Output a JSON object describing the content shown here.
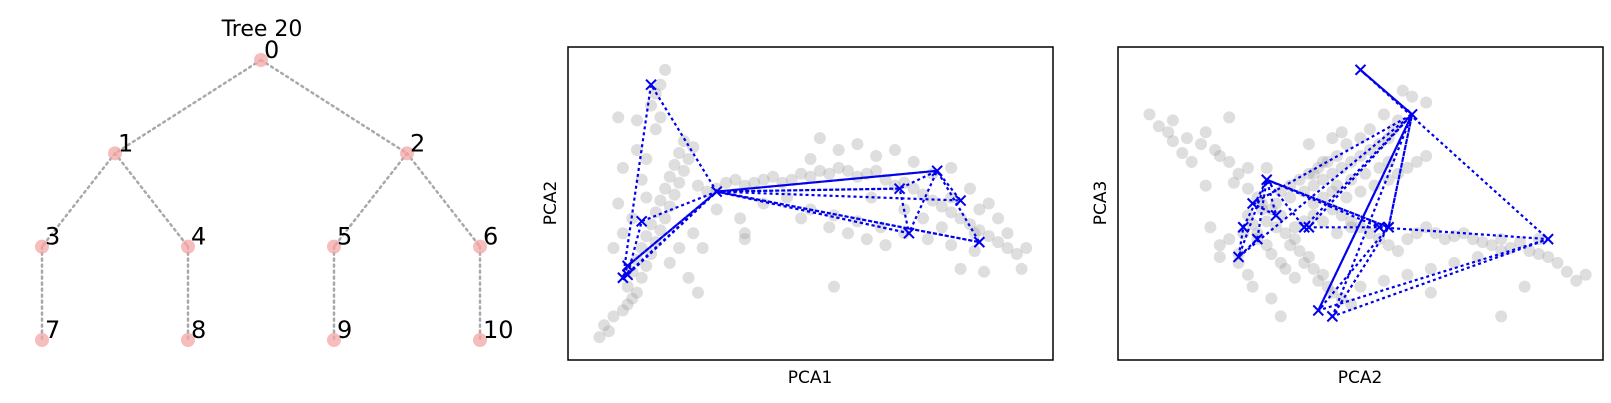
{
  "chart_data": [
    {
      "type": "tree",
      "title": "Tree 20",
      "nodes": [
        {
          "id": 0,
          "label": "0",
          "parent": null
        },
        {
          "id": 1,
          "label": "1",
          "parent": 0
        },
        {
          "id": 2,
          "label": "2",
          "parent": 0
        },
        {
          "id": 3,
          "label": "3",
          "parent": 1
        },
        {
          "id": 4,
          "label": "4",
          "parent": 1
        },
        {
          "id": 5,
          "label": "5",
          "parent": 2
        },
        {
          "id": 6,
          "label": "6",
          "parent": 2
        },
        {
          "id": 7,
          "label": "7",
          "parent": 3
        },
        {
          "id": 8,
          "label": "8",
          "parent": 4
        },
        {
          "id": 9,
          "label": "9",
          "parent": 5
        },
        {
          "id": 10,
          "label": "10",
          "parent": 6
        }
      ],
      "node_color": "#f4a6a6",
      "edge_color": "#a9a9a9"
    },
    {
      "type": "scatter",
      "xlabel": "PCA1",
      "ylabel": "PCA2",
      "xlim": [
        0,
        100
      ],
      "ylim": [
        0,
        100
      ],
      "point_color": "#a0a0a0",
      "path_color": "#0000ee",
      "points": [
        [
          5,
          5
        ],
        [
          7,
          7
        ],
        [
          6,
          9
        ],
        [
          8,
          12
        ],
        [
          10,
          14
        ],
        [
          11,
          16
        ],
        [
          12,
          18
        ],
        [
          13,
          20
        ],
        [
          11,
          22
        ],
        [
          14,
          25
        ],
        [
          12,
          27
        ],
        [
          15,
          29
        ],
        [
          13,
          31
        ],
        [
          16,
          33
        ],
        [
          14,
          35
        ],
        [
          17,
          37
        ],
        [
          15,
          39
        ],
        [
          18,
          41
        ],
        [
          16,
          43
        ],
        [
          19,
          45
        ],
        [
          17,
          47
        ],
        [
          20,
          49
        ],
        [
          18,
          51
        ],
        [
          21,
          53
        ],
        [
          19,
          55
        ],
        [
          22,
          57
        ],
        [
          20,
          59
        ],
        [
          23,
          61
        ],
        [
          21,
          63
        ],
        [
          24,
          65
        ],
        [
          22,
          67
        ],
        [
          25,
          69
        ],
        [
          23,
          71
        ],
        [
          17,
          75
        ],
        [
          18,
          79
        ],
        [
          16,
          83
        ],
        [
          17,
          87
        ],
        [
          18,
          90
        ],
        [
          19,
          95
        ],
        [
          10,
          40
        ],
        [
          9,
          50
        ],
        [
          8,
          35
        ],
        [
          12,
          45
        ],
        [
          14,
          58
        ],
        [
          10,
          62
        ],
        [
          13,
          68
        ],
        [
          15,
          52
        ],
        [
          26,
          56
        ],
        [
          28,
          54
        ],
        [
          30,
          55
        ],
        [
          32,
          57
        ],
        [
          34,
          58
        ],
        [
          36,
          56
        ],
        [
          38,
          57
        ],
        [
          40,
          58
        ],
        [
          42,
          59
        ],
        [
          44,
          57
        ],
        [
          46,
          58
        ],
        [
          48,
          60
        ],
        [
          50,
          59
        ],
        [
          52,
          61
        ],
        [
          54,
          60
        ],
        [
          56,
          62
        ],
        [
          58,
          61
        ],
        [
          60,
          59
        ],
        [
          62,
          60
        ],
        [
          64,
          61
        ],
        [
          66,
          58
        ],
        [
          68,
          56
        ],
        [
          70,
          57
        ],
        [
          72,
          55
        ],
        [
          74,
          53
        ],
        [
          76,
          51
        ],
        [
          78,
          49
        ],
        [
          80,
          47
        ],
        [
          82,
          45
        ],
        [
          84,
          43
        ],
        [
          86,
          41
        ],
        [
          88,
          39
        ],
        [
          90,
          37
        ],
        [
          92,
          35
        ],
        [
          94,
          33
        ],
        [
          50,
          48
        ],
        [
          55,
          46
        ],
        [
          60,
          44
        ],
        [
          65,
          42
        ],
        [
          70,
          40
        ],
        [
          75,
          38
        ],
        [
          80,
          36
        ],
        [
          85,
          34
        ],
        [
          50,
          65
        ],
        [
          52,
          72
        ],
        [
          56,
          68
        ],
        [
          60,
          70
        ],
        [
          64,
          66
        ],
        [
          68,
          68
        ],
        [
          72,
          64
        ],
        [
          76,
          60
        ],
        [
          80,
          62
        ],
        [
          84,
          55
        ],
        [
          88,
          50
        ],
        [
          40,
          50
        ],
        [
          45,
          52
        ],
        [
          35,
          45
        ],
        [
          30,
          48
        ],
        [
          25,
          40
        ],
        [
          27,
          35
        ],
        [
          36,
          40
        ],
        [
          20,
          30
        ],
        [
          22,
          35
        ],
        [
          24,
          25
        ],
        [
          26,
          20
        ],
        [
          15,
          65
        ],
        [
          13,
          78
        ],
        [
          9,
          79
        ],
        [
          95,
          28
        ],
        [
          96,
          35
        ],
        [
          87,
          27
        ],
        [
          82,
          28
        ],
        [
          55,
          22
        ],
        [
          36,
          38
        ],
        [
          48,
          45
        ],
        [
          63,
          52
        ],
        [
          70,
          48
        ],
        [
          74,
          45
        ],
        [
          78,
          42
        ],
        [
          62,
          38
        ],
        [
          58,
          40
        ],
        [
          54,
          42
        ],
        [
          66,
          36
        ],
        [
          86,
          48
        ],
        [
          90,
          45
        ],
        [
          92,
          40
        ],
        [
          85,
          40
        ],
        [
          80,
          52
        ]
      ],
      "path": [
        [
          10,
          25
        ],
        [
          16,
          90
        ],
        [
          30,
          54
        ],
        [
          10,
          25
        ],
        [
          11,
          29
        ],
        [
          30,
          54
        ],
        [
          14,
          44
        ],
        [
          11,
          26
        ],
        [
          30,
          54
        ],
        [
          86,
          37
        ],
        [
          30,
          54
        ],
        [
          69,
          55
        ],
        [
          77,
          61
        ],
        [
          30,
          54
        ],
        [
          71,
          40
        ],
        [
          69,
          55
        ],
        [
          30,
          54
        ],
        [
          77,
          61
        ],
        [
          82,
          51
        ],
        [
          30,
          54
        ],
        [
          86,
          37
        ],
        [
          77,
          61
        ],
        [
          71,
          40
        ],
        [
          30,
          54
        ],
        [
          11,
          29
        ]
      ]
    },
    {
      "type": "scatter",
      "xlabel": "PCA2",
      "ylabel": "PCA3",
      "xlim": [
        0,
        100
      ],
      "ylim": [
        0,
        100
      ],
      "point_color": "#a0a0a0",
      "path_color": "#0000ee",
      "points": [
        [
          5,
          80
        ],
        [
          7,
          76
        ],
        [
          9,
          74
        ],
        [
          10,
          78
        ],
        [
          13,
          72
        ],
        [
          16,
          70
        ],
        [
          17,
          74
        ],
        [
          19,
          68
        ],
        [
          20,
          66
        ],
        [
          22,
          64
        ],
        [
          24,
          60
        ],
        [
          26,
          62
        ],
        [
          23,
          57
        ],
        [
          17,
          56
        ],
        [
          14,
          64
        ],
        [
          22,
          79
        ],
        [
          10,
          71
        ],
        [
          12,
          67
        ],
        [
          26,
          55
        ],
        [
          28,
          52
        ],
        [
          29,
          50
        ],
        [
          31,
          48
        ],
        [
          33,
          46
        ],
        [
          30,
          44
        ],
        [
          32,
          42
        ],
        [
          34,
          40
        ],
        [
          36,
          38
        ],
        [
          35,
          36
        ],
        [
          37,
          34
        ],
        [
          39,
          32
        ],
        [
          38,
          30
        ],
        [
          40,
          28
        ],
        [
          42,
          26
        ],
        [
          41,
          24
        ],
        [
          43,
          22
        ],
        [
          44,
          20
        ],
        [
          46,
          18
        ],
        [
          48,
          16
        ],
        [
          36,
          25
        ],
        [
          34,
          28
        ],
        [
          33,
          30
        ],
        [
          31,
          33
        ],
        [
          30,
          36
        ],
        [
          28,
          40
        ],
        [
          27,
          43
        ],
        [
          26,
          46
        ],
        [
          29,
          48
        ],
        [
          32,
          50
        ],
        [
          35,
          52
        ],
        [
          38,
          54
        ],
        [
          40,
          56
        ],
        [
          42,
          58
        ],
        [
          44,
          60
        ],
        [
          46,
          62
        ],
        [
          48,
          64
        ],
        [
          50,
          66
        ],
        [
          52,
          68
        ],
        [
          54,
          70
        ],
        [
          56,
          72
        ],
        [
          57,
          75
        ],
        [
          58,
          78
        ],
        [
          55,
          80
        ],
        [
          52,
          75
        ],
        [
          50,
          72
        ],
        [
          47,
          70
        ],
        [
          45,
          66
        ],
        [
          43,
          64
        ],
        [
          41,
          62
        ],
        [
          39,
          60
        ],
        [
          37,
          58
        ],
        [
          35,
          56
        ],
        [
          33,
          54
        ],
        [
          44,
          48
        ],
        [
          46,
          46
        ],
        [
          48,
          44
        ],
        [
          50,
          42
        ],
        [
          52,
          40
        ],
        [
          54,
          38
        ],
        [
          56,
          36
        ],
        [
          58,
          34
        ],
        [
          60,
          38
        ],
        [
          62,
          40
        ],
        [
          64,
          42
        ],
        [
          66,
          40
        ],
        [
          68,
          38
        ],
        [
          70,
          39
        ],
        [
          72,
          40
        ],
        [
          74,
          38
        ],
        [
          76,
          37
        ],
        [
          78,
          36
        ],
        [
          80,
          38
        ],
        [
          82,
          35
        ],
        [
          84,
          37
        ],
        [
          86,
          34
        ],
        [
          88,
          33
        ],
        [
          90,
          32
        ],
        [
          92,
          30
        ],
        [
          94,
          27
        ],
        [
          96,
          24
        ],
        [
          98,
          26
        ],
        [
          88,
          38
        ],
        [
          80,
          34
        ],
        [
          75,
          32
        ],
        [
          70,
          30
        ],
        [
          65,
          28
        ],
        [
          60,
          26
        ],
        [
          55,
          24
        ],
        [
          50,
          22
        ],
        [
          45,
          40
        ],
        [
          42,
          44
        ],
        [
          40,
          46
        ],
        [
          38,
          44
        ],
        [
          36,
          42
        ],
        [
          47,
          52
        ],
        [
          50,
          54
        ],
        [
          53,
          56
        ],
        [
          56,
          58
        ],
        [
          45,
          56
        ],
        [
          48,
          58
        ],
        [
          51,
          60
        ],
        [
          40,
          50
        ],
        [
          42,
          52
        ],
        [
          44,
          54
        ],
        [
          59,
          88
        ],
        [
          61,
          86
        ],
        [
          64,
          84
        ],
        [
          60,
          62
        ],
        [
          62,
          64
        ],
        [
          64,
          66
        ],
        [
          40,
          60
        ],
        [
          42,
          64
        ],
        [
          30,
          62
        ],
        [
          25,
          40
        ],
        [
          24,
          33
        ],
        [
          27,
          22
        ],
        [
          65,
          20
        ],
        [
          85,
          22
        ],
        [
          80,
          12
        ],
        [
          20,
          32
        ],
        [
          31,
          18
        ],
        [
          33,
          12
        ],
        [
          56,
          64
        ],
        [
          54,
          62
        ],
        [
          58,
          60
        ],
        [
          44,
          72
        ],
        [
          46,
          74
        ],
        [
          48,
          42
        ],
        [
          28,
          38
        ],
        [
          22,
          38
        ],
        [
          18,
          42
        ],
        [
          20,
          36
        ],
        [
          24,
          30
        ],
        [
          39,
          70
        ],
        [
          26,
          26
        ]
      ],
      "path": [
        [
          50,
          95
        ],
        [
          61,
          80
        ],
        [
          41,
          14
        ],
        [
          61,
          80
        ],
        [
          27,
          50
        ],
        [
          32,
          46
        ],
        [
          30,
          58
        ],
        [
          25,
          42
        ],
        [
          24,
          32
        ],
        [
          28,
          38
        ],
        [
          30,
          58
        ],
        [
          38,
          42
        ],
        [
          61,
          80
        ],
        [
          44,
          12
        ],
        [
          56,
          42
        ],
        [
          30,
          58
        ],
        [
          54,
          42
        ],
        [
          90,
          38
        ],
        [
          41,
          14
        ],
        [
          56,
          42
        ],
        [
          61,
          80
        ],
        [
          39,
          42
        ],
        [
          56,
          42
        ],
        [
          30,
          58
        ],
        [
          24,
          32
        ],
        [
          61,
          80
        ],
        [
          56,
          42
        ],
        [
          44,
          12
        ],
        [
          90,
          38
        ],
        [
          50,
          95
        ],
        [
          61,
          80
        ],
        [
          41,
          14
        ]
      ]
    }
  ]
}
